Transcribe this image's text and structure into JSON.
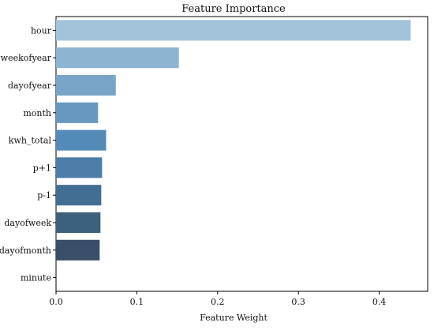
{
  "chart_data": {
    "type": "bar",
    "orientation": "horizontal",
    "title": "Feature Importance",
    "xlabel": "Feature Weight",
    "ylabel": "",
    "categories": [
      "hour",
      "weekofyear",
      "dayofyear",
      "month",
      "kwh_total",
      "p+1",
      "p-1",
      "dayofweek",
      "dayofmonth",
      "minute"
    ],
    "values": [
      0.439,
      0.152,
      0.074,
      0.052,
      0.062,
      0.057,
      0.056,
      0.055,
      0.054,
      0.0
    ],
    "xlim": [
      0,
      0.46
    ],
    "xticks": [
      0.0,
      0.1,
      0.2,
      0.3,
      0.4
    ],
    "xtick_labels": [
      "0.0",
      "0.1",
      "0.2",
      "0.3",
      "0.4"
    ],
    "grid": false,
    "legend": "none",
    "bar_colors": [
      "#a2c3da",
      "#8db4d0",
      "#78a5c7",
      "#6698c0",
      "#548ab8",
      "#4b7da8",
      "#436e94",
      "#3d607c",
      "#394e67",
      "#333f52"
    ]
  }
}
